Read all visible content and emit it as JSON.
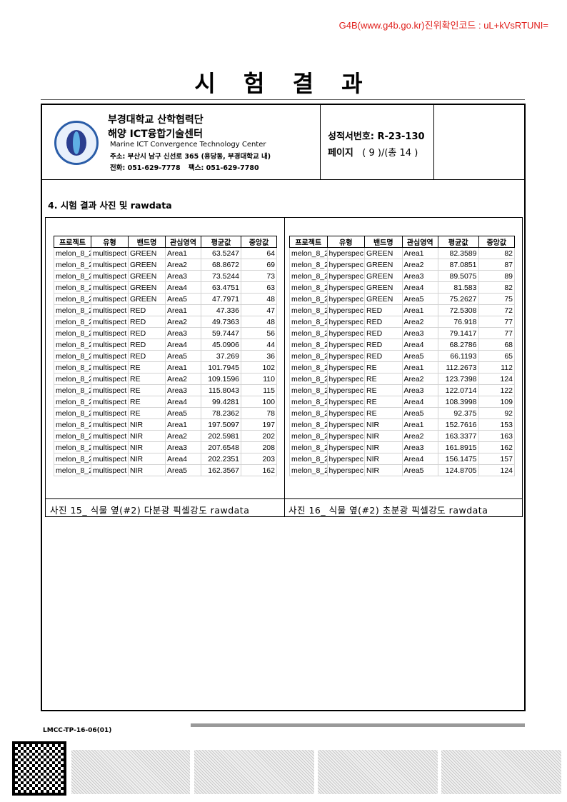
{
  "verification": "G4B(www.g4b.go.kr)진위확인코드 : uL+kVsRTUNI=",
  "title": "시 험 결 과",
  "header": {
    "org_name": "부경대학교 산학협력단",
    "center_name": "해양 ICT융합기술센터",
    "center_name_en": "Marine ICT Convergence Technology Center",
    "address": "주소: 부산시 남구 신선로 365 (용당동, 부경대학교 내)",
    "phone": "전화: 051-629-7778",
    "fax": "팩스:  051-629-7780",
    "report_no_label": "성적서번호:",
    "report_no": "R-23-130",
    "page_label": "페이지",
    "page_text": "( 9 )/(총 14 )"
  },
  "section_title": "4. 시험 결과 사진 및 rawdata",
  "columns": [
    "프로젝트",
    "유형",
    "밴드명",
    "관심영역",
    "평균값",
    "중앙값"
  ],
  "tables": [
    {
      "caption": "사진 15_ 식물 옆(#2) 다분광 픽셀강도 rawdata",
      "type": "multispect",
      "rows": [
        [
          "melon_8_2",
          "multispect",
          "GREEN",
          "Area1",
          "63.5247",
          "64"
        ],
        [
          "melon_8_2",
          "multispect",
          "GREEN",
          "Area2",
          "68.8672",
          "69"
        ],
        [
          "melon_8_2",
          "multispect",
          "GREEN",
          "Area3",
          "73.5244",
          "73"
        ],
        [
          "melon_8_2",
          "multispect",
          "GREEN",
          "Area4",
          "63.4751",
          "63"
        ],
        [
          "melon_8_2",
          "multispect",
          "GREEN",
          "Area5",
          "47.7971",
          "48"
        ],
        [
          "melon_8_2",
          "multispect",
          "RED",
          "Area1",
          "47.336",
          "47"
        ],
        [
          "melon_8_2",
          "multispect",
          "RED",
          "Area2",
          "49.7363",
          "48"
        ],
        [
          "melon_8_2",
          "multispect",
          "RED",
          "Area3",
          "59.7447",
          "56"
        ],
        [
          "melon_8_2",
          "multispect",
          "RED",
          "Area4",
          "45.0906",
          "44"
        ],
        [
          "melon_8_2",
          "multispect",
          "RED",
          "Area5",
          "37.269",
          "36"
        ],
        [
          "melon_8_2",
          "multispect",
          "RE",
          "Area1",
          "101.7945",
          "102"
        ],
        [
          "melon_8_2",
          "multispect",
          "RE",
          "Area2",
          "109.1596",
          "110"
        ],
        [
          "melon_8_2",
          "multispect",
          "RE",
          "Area3",
          "115.8043",
          "115"
        ],
        [
          "melon_8_2",
          "multispect",
          "RE",
          "Area4",
          "99.4281",
          "100"
        ],
        [
          "melon_8_2",
          "multispect",
          "RE",
          "Area5",
          "78.2362",
          "78"
        ],
        [
          "melon_8_2",
          "multispect",
          "NIR",
          "Area1",
          "197.5097",
          "197"
        ],
        [
          "melon_8_2",
          "multispect",
          "NIR",
          "Area2",
          "202.5981",
          "202"
        ],
        [
          "melon_8_2",
          "multispect",
          "NIR",
          "Area3",
          "207.6548",
          "208"
        ],
        [
          "melon_8_2",
          "multispect",
          "NIR",
          "Area4",
          "202.2351",
          "203"
        ],
        [
          "melon_8_2",
          "multispect",
          "NIR",
          "Area5",
          "162.3567",
          "162"
        ]
      ]
    },
    {
      "caption": "사진 16_ 식물 옆(#2) 초분광 픽셀강도 rawdata",
      "type": "hyperspec",
      "rows": [
        [
          "melon_8_2",
          "hyperspec",
          "GREEN",
          "Area1",
          "82.3589",
          "82"
        ],
        [
          "melon_8_2",
          "hyperspec",
          "GREEN",
          "Area2",
          "87.0851",
          "87"
        ],
        [
          "melon_8_2",
          "hyperspec",
          "GREEN",
          "Area3",
          "89.5075",
          "89"
        ],
        [
          "melon_8_2",
          "hyperspec",
          "GREEN",
          "Area4",
          "81.583",
          "82"
        ],
        [
          "melon_8_2",
          "hyperspec",
          "GREEN",
          "Area5",
          "75.2627",
          "75"
        ],
        [
          "melon_8_2",
          "hyperspec",
          "RED",
          "Area1",
          "72.5308",
          "72"
        ],
        [
          "melon_8_2",
          "hyperspec",
          "RED",
          "Area2",
          "76.918",
          "77"
        ],
        [
          "melon_8_2",
          "hyperspec",
          "RED",
          "Area3",
          "79.1417",
          "77"
        ],
        [
          "melon_8_2",
          "hyperspec",
          "RED",
          "Area4",
          "68.2786",
          "68"
        ],
        [
          "melon_8_2",
          "hyperspec",
          "RED",
          "Area5",
          "66.1193",
          "65"
        ],
        [
          "melon_8_2",
          "hyperspec",
          "RE",
          "Area1",
          "112.2673",
          "112"
        ],
        [
          "melon_8_2",
          "hyperspec",
          "RE",
          "Area2",
          "123.7398",
          "124"
        ],
        [
          "melon_8_2",
          "hyperspec",
          "RE",
          "Area3",
          "122.0714",
          "122"
        ],
        [
          "melon_8_2",
          "hyperspec",
          "RE",
          "Area4",
          "108.3998",
          "109"
        ],
        [
          "melon_8_2",
          "hyperspec",
          "RE",
          "Area5",
          "92.375",
          "92"
        ],
        [
          "melon_8_2",
          "hyperspec",
          "NIR",
          "Area1",
          "152.7616",
          "153"
        ],
        [
          "melon_8_2",
          "hyperspec",
          "NIR",
          "Area2",
          "163.3377",
          "163"
        ],
        [
          "melon_8_2",
          "hyperspec",
          "NIR",
          "Area3",
          "161.8915",
          "162"
        ],
        [
          "melon_8_2",
          "hyperspec",
          "NIR",
          "Area4",
          "156.1475",
          "157"
        ],
        [
          "melon_8_2",
          "hyperspec",
          "NIR",
          "Area5",
          "124.8705",
          "124"
        ]
      ]
    }
  ],
  "footer": {
    "form_code": "LMCC-TP-16-06(01)"
  }
}
